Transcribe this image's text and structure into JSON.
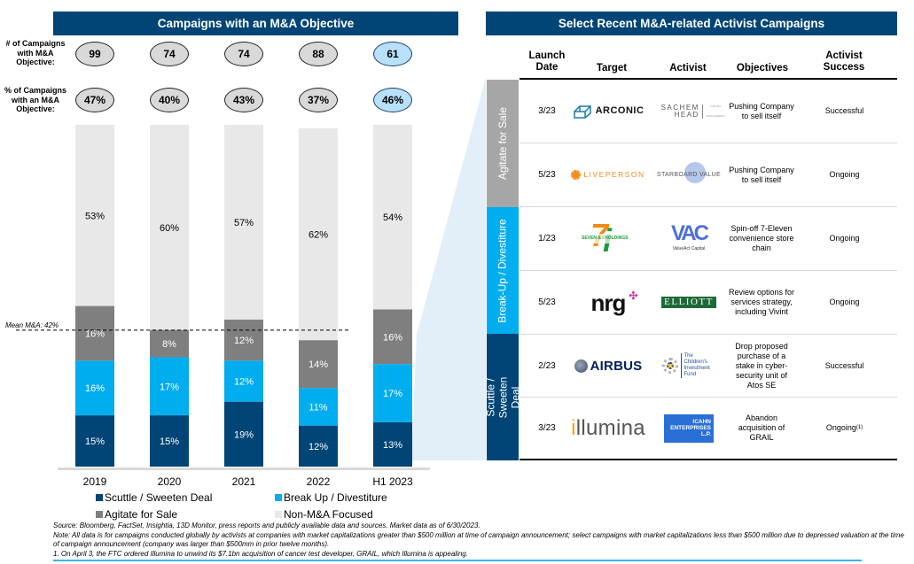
{
  "left_panel": {
    "title": "Campaigns with an M&A Objective",
    "row_label_count": "# of Campaigns with M&A Objective:",
    "row_label_pct": "% of Campaigns with an M&A Objective:",
    "counts": [
      "99",
      "74",
      "74",
      "88",
      "61"
    ],
    "pcts": [
      "47%",
      "40%",
      "43%",
      "37%",
      "46%"
    ],
    "highlight_index": 4
  },
  "chart_data": {
    "type": "bar",
    "stacked": true,
    "categories": [
      "2019",
      "2020",
      "2021",
      "2022",
      "H1 2023"
    ],
    "series": [
      {
        "name": "Scuttle / Sweeten Deal",
        "color": "#004575",
        "label_color": "#ffffff",
        "values": [
          15,
          15,
          19,
          12,
          13
        ]
      },
      {
        "name": "Break Up / Divestiture",
        "color": "#00adef",
        "label_color": "#ffffff",
        "values": [
          16,
          17,
          12,
          11,
          17
        ]
      },
      {
        "name": "Agitate for Sale",
        "color": "#7f7f7f",
        "label_color": "#ffffff",
        "values": [
          16,
          8,
          12,
          14,
          16
        ]
      },
      {
        "name": "Non-M&A Focused",
        "color": "#e8e8e8",
        "label_color": "#000000",
        "values": [
          53,
          60,
          57,
          62,
          54
        ]
      }
    ],
    "data_labels": [
      [
        "15%",
        "15%",
        "19%",
        "12%",
        "13%"
      ],
      [
        "16%",
        "17%",
        "12%",
        "11%",
        "17%"
      ],
      [
        "16%",
        "8%",
        "12%",
        "14%",
        "16%"
      ],
      [
        "53%",
        "60%",
        "57%",
        "62%",
        "54%"
      ]
    ],
    "ylim": [
      0,
      100
    ],
    "units": "%",
    "reference_line": {
      "label": "Mean M&A: 42%",
      "value": 42,
      "style": "dashed"
    },
    "legend": {
      "placement": "bottom",
      "columns": 2
    },
    "grid": false,
    "title": "Campaigns with an M&A Objective",
    "xlabel": "",
    "ylabel": ""
  },
  "right_panel": {
    "title": "Select Recent M&A-related Activist Campaigns",
    "headers": {
      "date": "Launch Date",
      "target": "Target",
      "activist": "Activist",
      "objectives": "Objectives",
      "success": "Activist Success"
    },
    "categories": [
      {
        "label": "Agitate for Sale",
        "color": "#a6a6a6"
      },
      {
        "label": "Break-Up / Divestiture",
        "color": "#00adef"
      },
      {
        "label": "Scuttle / Sweeten Deal",
        "color": "#004575"
      }
    ],
    "rows": [
      {
        "date": "3/23",
        "target": "ARCONIC",
        "activist": "SACHEM HEAD",
        "activist_sub": "CAPITAL MANAGEMENT",
        "objective": "Pushing Company to sell itself",
        "success": "Successful"
      },
      {
        "date": "5/23",
        "target": "LIVEPERSON",
        "activist": "STARBOARD VALUE",
        "objective": "Pushing Company to sell itself",
        "success": "Ongoing"
      },
      {
        "date": "1/23",
        "target": "SEVEN & i HOLDINGS",
        "activist": "VAC",
        "activist_sub": "ValueAct Capital",
        "objective": "Spin-off 7-Eleven convenience store chain",
        "success": "Ongoing"
      },
      {
        "date": "5/23",
        "target": "nrg",
        "activist": "ELLIOTT",
        "objective": "Review options for services strategy, including Vivint",
        "success": "Ongoing"
      },
      {
        "date": "2/23",
        "target": "AIRBUS",
        "activist": "The Children's Investment Fund",
        "objective": "Drop proposed purchase of a stake in cyber-security unit of Atos SE",
        "success": "Successful"
      },
      {
        "date": "3/23",
        "target": "illumina",
        "activist": "ICAHN ENTERPRISES L.P.",
        "objective": "Abandon acquisition of GRAIL",
        "success": "Ongoing",
        "success_note": "(1)"
      }
    ]
  },
  "footnotes": {
    "source": "Source: Bloomberg, FactSet, Insightia, 13D Monitor, press reports and publicly available data and sources. Market data as of 6/30/2023.",
    "note": "Note: All data is for campaigns conducted globally by activists at companies with market capitalizations greater than $500 million at time of campaign announcement; select campaigns with market capitalizations less than $500 million due to depressed valuation at the time of campaign announcement (company was larger than $500mm in prior twelve months).",
    "note1": "1. On April 3, the FTC ordered Illumina to unwind its $7.1bn acquisition of cancer test developer, GRAIL, which Illumina is appealing."
  }
}
